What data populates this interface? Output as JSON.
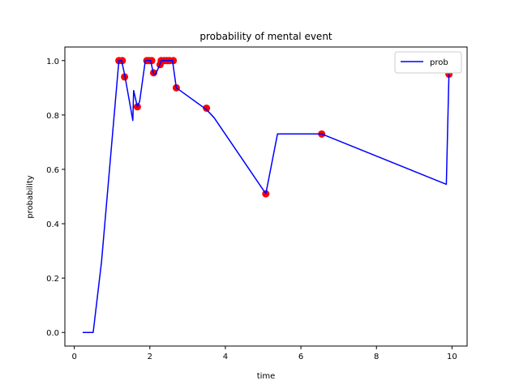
{
  "chart_data": {
    "type": "line",
    "title": "probability of mental event",
    "xlabel": "time",
    "ylabel": "probability",
    "xlim": [
      -0.25,
      10.4
    ],
    "ylim": [
      -0.05,
      1.05
    ],
    "xticks": [
      0,
      2,
      4,
      6,
      8,
      10
    ],
    "xtick_labels": [
      "0",
      "2",
      "4",
      "6",
      "8",
      "10"
    ],
    "yticks": [
      0.0,
      0.2,
      0.4,
      0.6,
      0.8,
      1.0
    ],
    "ytick_labels": [
      "0.0",
      "0.2",
      "0.4",
      "0.6",
      "0.8",
      "1.0"
    ],
    "grid": false,
    "legend_position": "top-right",
    "series": [
      {
        "name": "prob",
        "kind": "line",
        "color": "#0000ff",
        "x": [
          0.22,
          0.5,
          0.72,
          1.18,
          1.25,
          1.33,
          1.55,
          1.57,
          1.67,
          1.73,
          1.88,
          1.95,
          2.02,
          2.1,
          2.15,
          2.25,
          2.3,
          2.38,
          2.45,
          2.52,
          2.6,
          2.7,
          3.5,
          3.7,
          5.07,
          5.38,
          6.55,
          9.85,
          9.92
        ],
        "y": [
          0.0,
          0.0,
          0.26,
          1.0,
          1.0,
          0.95,
          0.78,
          0.89,
          0.83,
          0.85,
          1.0,
          1.0,
          1.0,
          0.95,
          0.95,
          0.98,
          1.0,
          1.0,
          1.0,
          1.0,
          1.0,
          0.9,
          0.82,
          0.79,
          0.51,
          0.73,
          0.73,
          0.545,
          0.95
        ]
      },
      {
        "kind": "scatter",
        "color": "#ff0000",
        "x": [
          1.18,
          1.27,
          1.33,
          1.67,
          1.92,
          1.98,
          2.05,
          2.1,
          2.27,
          2.3,
          2.38,
          2.45,
          2.52,
          2.62,
          2.7,
          3.5,
          5.07,
          6.55,
          9.92
        ],
        "y": [
          1.0,
          1.0,
          0.94,
          0.83,
          1.0,
          1.0,
          1.0,
          0.955,
          0.985,
          1.0,
          1.0,
          1.0,
          1.0,
          1.0,
          0.9,
          0.825,
          0.51,
          0.73,
          0.95
        ]
      }
    ]
  }
}
